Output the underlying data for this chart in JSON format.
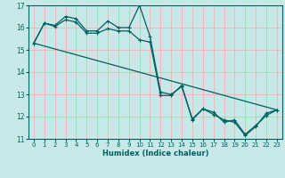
{
  "xlabel": "Humidex (Indice chaleur)",
  "background_color": "#c8e8e8",
  "grid_color": "#f0b8b8",
  "line_color": "#006060",
  "xlim": [
    -0.5,
    23.5
  ],
  "ylim": [
    11,
    17
  ],
  "yticks": [
    11,
    12,
    13,
    14,
    15,
    16,
    17
  ],
  "xticks": [
    0,
    1,
    2,
    3,
    4,
    5,
    6,
    7,
    8,
    9,
    10,
    11,
    12,
    13,
    14,
    15,
    16,
    17,
    18,
    19,
    20,
    21,
    22,
    23
  ],
  "series1_x": [
    0,
    1,
    2,
    3,
    4,
    5,
    6,
    7,
    8,
    9,
    10,
    11,
    12,
    13,
    14,
    15,
    16,
    17,
    18,
    19,
    20,
    21,
    22,
    23
  ],
  "series1_y": [
    15.3,
    16.2,
    16.1,
    16.5,
    16.4,
    15.85,
    15.85,
    16.3,
    16.0,
    16.0,
    17.0,
    15.6,
    13.1,
    13.0,
    13.35,
    11.9,
    12.35,
    12.2,
    11.75,
    11.85,
    11.2,
    11.6,
    12.05,
    12.3
  ],
  "series2_x": [
    0,
    1,
    2,
    3,
    4,
    5,
    6,
    7,
    8,
    9,
    10,
    11,
    12,
    13,
    14,
    15,
    16,
    17,
    18,
    19,
    20,
    21,
    22,
    23
  ],
  "series2_y": [
    15.3,
    16.2,
    16.05,
    16.35,
    16.25,
    15.75,
    15.75,
    15.95,
    15.85,
    15.85,
    15.45,
    15.35,
    12.95,
    12.95,
    13.4,
    11.85,
    12.35,
    12.1,
    11.85,
    11.75,
    11.15,
    11.55,
    12.15,
    12.3
  ],
  "trend_x": [
    0,
    23
  ],
  "trend_y": [
    15.3,
    12.3
  ]
}
